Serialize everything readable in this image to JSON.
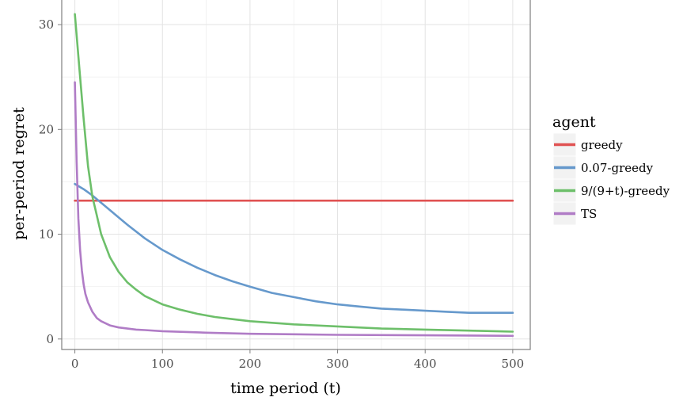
{
  "chart_data": {
    "type": "line",
    "xlabel": "time period (t)",
    "ylabel": "per-period regret",
    "xlim": [
      -15,
      520
    ],
    "ylim": [
      -1,
      32.5
    ],
    "x_ticks": [
      0,
      100,
      200,
      300,
      400,
      500
    ],
    "y_ticks": [
      0,
      10,
      20,
      30
    ],
    "grid": true,
    "legend": {
      "title": "agent",
      "position": "right"
    },
    "series": [
      {
        "name": "greedy",
        "color": "#e05252",
        "x": [
          0,
          500
        ],
        "y": [
          13.2,
          13.2
        ]
      },
      {
        "name": "0.07-greedy",
        "color": "#6699cc",
        "x": [
          0,
          10,
          20,
          30,
          40,
          50,
          60,
          80,
          100,
          120,
          140,
          160,
          180,
          200,
          225,
          250,
          275,
          300,
          325,
          350,
          375,
          400,
          425,
          450,
          475,
          500
        ],
        "y": [
          14.8,
          14.3,
          13.7,
          13.0,
          12.3,
          11.6,
          10.9,
          9.6,
          8.5,
          7.6,
          6.8,
          6.1,
          5.5,
          5.0,
          4.4,
          4.0,
          3.6,
          3.3,
          3.1,
          2.9,
          2.8,
          2.7,
          2.6,
          2.5,
          2.5,
          2.5
        ]
      },
      {
        "name": "9/(9+t)-greedy",
        "color": "#6dbf6a",
        "x": [
          0,
          5,
          10,
          15,
          20,
          25,
          30,
          40,
          50,
          60,
          70,
          80,
          100,
          120,
          140,
          160,
          180,
          200,
          250,
          300,
          350,
          400,
          450,
          500
        ],
        "y": [
          31.0,
          26.0,
          21.0,
          16.5,
          13.6,
          11.8,
          10.0,
          7.8,
          6.4,
          5.4,
          4.7,
          4.1,
          3.3,
          2.8,
          2.4,
          2.1,
          1.9,
          1.7,
          1.4,
          1.2,
          1.0,
          0.9,
          0.8,
          0.7
        ]
      },
      {
        "name": "TS",
        "color": "#b07cc6",
        "x": [
          0,
          2,
          4,
          6,
          8,
          10,
          12,
          15,
          20,
          25,
          30,
          40,
          50,
          60,
          70,
          80,
          100,
          150,
          200,
          250,
          300,
          400,
          500
        ],
        "y": [
          24.5,
          17.0,
          11.5,
          8.5,
          6.5,
          5.2,
          4.3,
          3.5,
          2.6,
          2.0,
          1.7,
          1.3,
          1.1,
          1.0,
          0.9,
          0.85,
          0.75,
          0.6,
          0.5,
          0.45,
          0.4,
          0.35,
          0.3
        ]
      }
    ]
  }
}
